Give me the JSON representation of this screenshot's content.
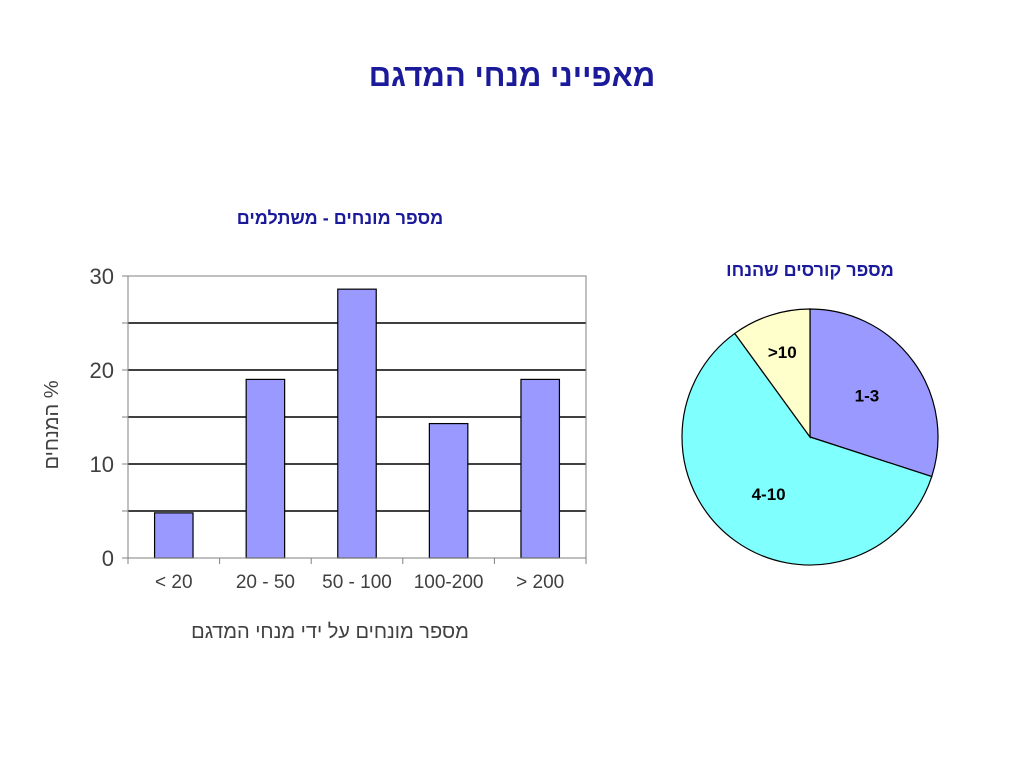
{
  "slide_title": "מאפייני מנחי המדגם",
  "colors": {
    "title": "#1a1a9a",
    "bar": "#9999ff",
    "pie_1_3": "#9999ff",
    "pie_4_10": "#80ffff",
    "pie_gt10": "#ffffcc"
  },
  "chart_data": [
    {
      "type": "bar",
      "title": "מספר מונחים - משתלמים",
      "categories": [
        "< 20",
        "20 - 50",
        "50 - 100",
        "100-200",
        "> 200"
      ],
      "values": [
        4.8,
        19,
        28.6,
        14.3,
        19
      ],
      "xlabel": "מספר מונחים על ידי מנחי המדגם",
      "ylabel": "% המנחים",
      "ylim": [
        0,
        30
      ],
      "yticks": [
        0,
        10,
        20,
        30
      ],
      "grid": true
    },
    {
      "type": "pie",
      "title": "מספר קורסים שהנחו",
      "labels": [
        "1-3",
        "4-10",
        ">10"
      ],
      "values": [
        30,
        60,
        10
      ]
    }
  ]
}
